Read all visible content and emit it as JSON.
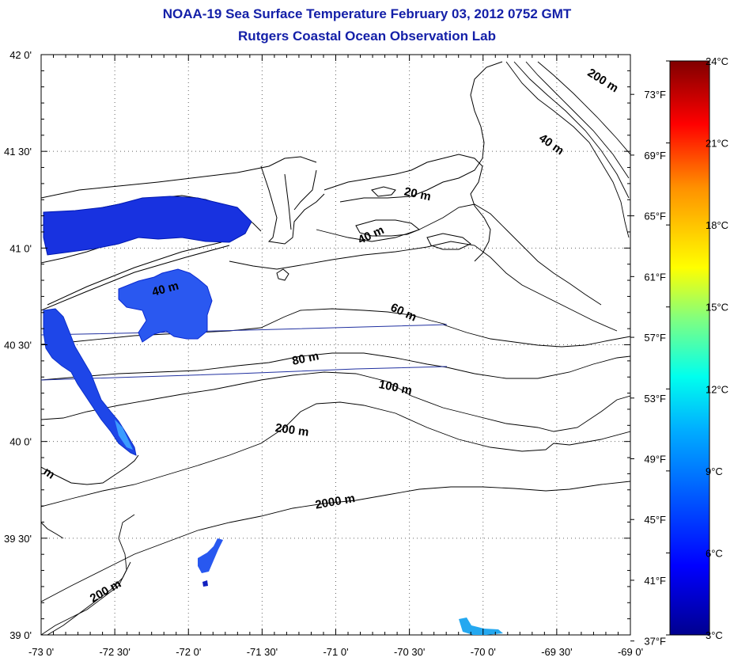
{
  "header": {
    "title": "NOAA-19 Sea Surface Temperature February 03, 2012 0752 GMT",
    "subtitle": "Rutgers Coastal Ocean Observation Lab"
  },
  "map": {
    "lon_ticks": [
      "-73 0'",
      "-72 30'",
      "-72 0'",
      "-71 30'",
      "-71 0'",
      "-70 30'",
      "-70 0'",
      "-69 30'",
      "-69 0'"
    ],
    "lat_ticks": [
      "42 0'",
      "41 30'",
      "41 0'",
      "40 30'",
      "40 0'",
      "39 30'",
      "39 0'"
    ],
    "lon_range": [
      -73,
      -69
    ],
    "lat_range": [
      39,
      42
    ],
    "grid": "dotted",
    "contour_labels": [
      {
        "text": "200 m",
        "lon": -69.2,
        "lat": 41.85
      },
      {
        "text": "40 m",
        "lon": -69.55,
        "lat": 41.52
      },
      {
        "text": "20 m",
        "lon": -70.45,
        "lat": 41.26
      },
      {
        "text": "40 m",
        "lon": -70.75,
        "lat": 41.05
      },
      {
        "text": "40 m",
        "lon": -72.15,
        "lat": 40.77
      },
      {
        "text": "60 m",
        "lon": -70.55,
        "lat": 40.65
      },
      {
        "text": "80 m",
        "lon": -71.2,
        "lat": 40.41
      },
      {
        "text": "100 m",
        "lon": -70.6,
        "lat": 40.26
      },
      {
        "text": "200 m",
        "lon": -71.3,
        "lat": 40.04
      },
      {
        "text": "2000 m",
        "lon": -71.0,
        "lat": 39.67
      },
      {
        "text": "200 m",
        "lon": -72.55,
        "lat": 39.21
      },
      {
        "text": "m",
        "lon": -72.96,
        "lat": 39.82
      }
    ]
  },
  "colorbar": {
    "celsius_labels": [
      "24°C",
      "21°C",
      "18°C",
      "15°C",
      "12°C",
      "9°C",
      "6°C",
      "3°C"
    ],
    "fahrenheit_labels": [
      "73°F",
      "69°F",
      "65°F",
      "61°F",
      "57°F",
      "53°F",
      "49°F",
      "45°F",
      "41°F",
      "37°F"
    ],
    "celsius_range": [
      3,
      24
    ],
    "colors": [
      "#00008f",
      "#0000ff",
      "#0080ff",
      "#00ffff",
      "#80ff80",
      "#ffff00",
      "#ff8000",
      "#ff0000",
      "#800000"
    ]
  }
}
